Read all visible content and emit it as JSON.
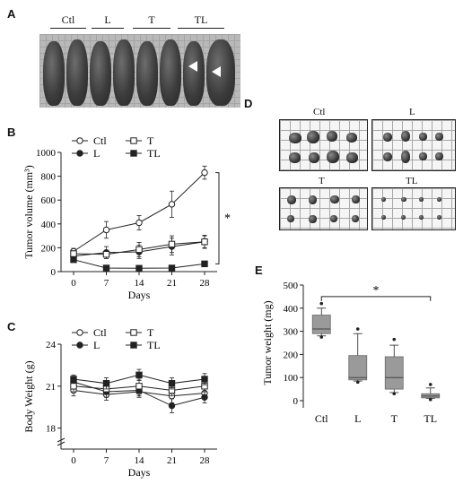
{
  "panels": {
    "A": {
      "letter": "A",
      "groups": [
        "Ctl",
        "L",
        "T",
        "TL"
      ]
    },
    "B": {
      "letter": "B",
      "significance": "*"
    },
    "C": {
      "letter": "C"
    },
    "D": {
      "letter": "D",
      "dish_labels": [
        "Ctl",
        "L",
        "T",
        "TL"
      ]
    },
    "E": {
      "letter": "E",
      "significance": "*"
    }
  },
  "colors": {
    "line": "#222222",
    "box_fill": "#9a9a9a",
    "photo_bg": "#b9b9b9"
  },
  "chart_data": [
    {
      "id": "B",
      "type": "line",
      "xlabel": "Days",
      "ylabel": "Tumor volume (mm³)",
      "x": [
        0,
        7,
        14,
        21,
        28
      ],
      "ylim": [
        0,
        1000
      ],
      "yticks": [
        0,
        200,
        400,
        600,
        800,
        1000
      ],
      "series": [
        {
          "name": "Ctl",
          "marker": "open-circle",
          "values": [
            170,
            350,
            410,
            565,
            830
          ],
          "err": [
            25,
            70,
            60,
            110,
            55
          ]
        },
        {
          "name": "L",
          "marker": "filled-circle",
          "values": [
            130,
            160,
            165,
            210,
            250
          ],
          "err": [
            25,
            50,
            55,
            70,
            55
          ]
        },
        {
          "name": "T",
          "marker": "open-square",
          "values": [
            150,
            145,
            185,
            230,
            250
          ],
          "err": [
            25,
            35,
            60,
            70,
            50
          ]
        },
        {
          "name": "TL",
          "marker": "filled-square",
          "values": [
            100,
            30,
            28,
            30,
            65
          ],
          "err": [
            20,
            5,
            5,
            5,
            10
          ]
        }
      ],
      "legend": "top-left"
    },
    {
      "id": "C",
      "type": "line",
      "xlabel": "Days",
      "ylabel": "Body Weight (g)",
      "x": [
        0,
        7,
        14,
        21,
        28
      ],
      "ylim": [
        16.5,
        24
      ],
      "yticks": [
        18,
        21,
        24
      ],
      "series": [
        {
          "name": "Ctl",
          "marker": "open-circle",
          "values": [
            20.7,
            20.4,
            20.6,
            20.3,
            20.5
          ],
          "err": [
            0.4,
            0.4,
            0.4,
            0.5,
            0.4
          ]
        },
        {
          "name": "L",
          "marker": "filled-circle",
          "values": [
            21.3,
            20.6,
            20.7,
            19.6,
            20.2
          ],
          "err": [
            0.4,
            0.4,
            0.4,
            0.5,
            0.4
          ]
        },
        {
          "name": "T",
          "marker": "open-square",
          "values": [
            21.0,
            20.8,
            21.0,
            20.7,
            21.0
          ],
          "err": [
            0.4,
            0.4,
            0.5,
            0.4,
            0.4
          ]
        },
        {
          "name": "TL",
          "marker": "filled-square",
          "values": [
            21.5,
            21.2,
            21.8,
            21.2,
            21.5
          ],
          "err": [
            0.3,
            0.4,
            0.4,
            0.4,
            0.4
          ]
        }
      ],
      "legend": "top-left"
    },
    {
      "id": "E",
      "type": "box",
      "ylabel": "Tumor weight (mg)",
      "categories": [
        "Ctl",
        "L",
        "T",
        "TL"
      ],
      "ylim": [
        0,
        500
      ],
      "yticks": [
        0,
        100,
        200,
        300,
        400,
        500
      ],
      "boxes": [
        {
          "whisker_low": 280,
          "q1": 290,
          "median": 310,
          "q3": 370,
          "whisker_high": 400,
          "outliers": [
            275,
            420
          ]
        },
        {
          "whisker_low": 85,
          "q1": 90,
          "median": 100,
          "q3": 195,
          "whisker_high": 290,
          "outliers": [
            80,
            310
          ]
        },
        {
          "whisker_low": 35,
          "q1": 50,
          "median": 100,
          "q3": 190,
          "whisker_high": 240,
          "outliers": [
            30,
            265
          ]
        },
        {
          "whisker_low": 10,
          "q1": 12,
          "median": 20,
          "q3": 30,
          "whisker_high": 55,
          "outliers": [
            5,
            70
          ]
        }
      ]
    }
  ]
}
